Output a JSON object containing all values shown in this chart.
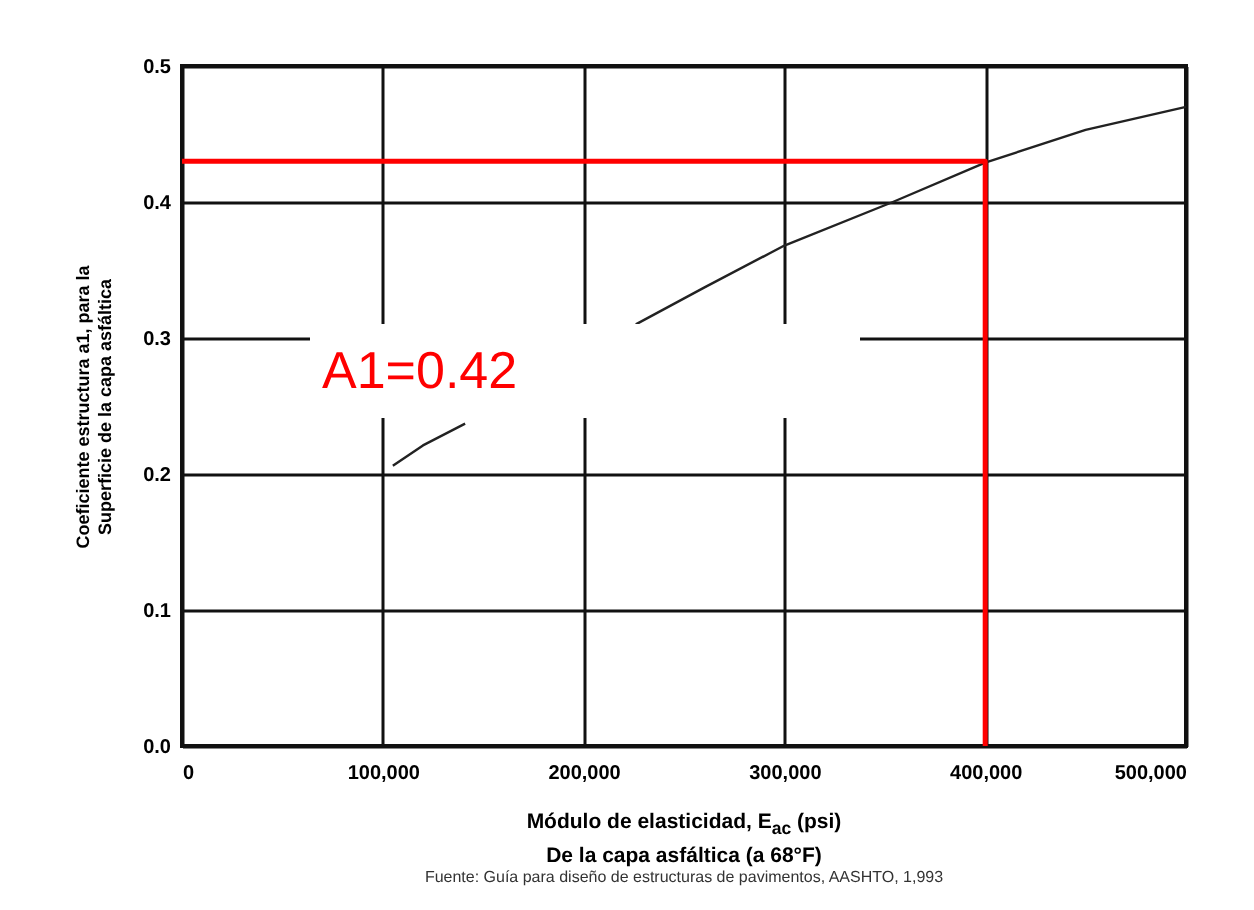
{
  "chart_data": {
    "type": "line",
    "xlabel": "Módulo de elasticidad, E$_{ac}$ (psi)\nDe la capa asfáltica (a 68°F)",
    "ylabel": "Coeficiente estructura a1, para la\nSuperficie de la capa asfáltica",
    "annotations": [
      "A1=0.42",
      "Fuente:  Guía para diseño de estructuras de pavimentos, AASHTO, 1,993"
    ],
    "xlim": [
      0,
      500000
    ],
    "ylim": [
      0,
      0.5
    ],
    "xticks": [
      {
        "value": 0,
        "label": "0"
      },
      {
        "value": 100000,
        "label": "100,000"
      },
      {
        "value": 200000,
        "label": "200,000"
      },
      {
        "value": 300000,
        "label": "300,000"
      },
      {
        "value": 400000,
        "label": "400,000"
      },
      {
        "value": 500000,
        "label": "500,000"
      }
    ],
    "yticks": [
      {
        "value": 0,
        "label": "0.0"
      },
      {
        "value": 0.1,
        "label": "0.1"
      },
      {
        "value": 0.2,
        "label": "0.2"
      },
      {
        "value": 0.3,
        "label": "0.3"
      },
      {
        "value": 0.4,
        "label": "0.4"
      },
      {
        "value": 0.5,
        "label": "0.5"
      }
    ],
    "grid": true,
    "series": [
      {
        "color": "#222222",
        "x": [
          105000,
          120000,
          141000,
          190000,
          226000,
          260000,
          300000,
          354000,
          400000,
          450000,
          500000
        ],
        "values": [
          0.206,
          0.221,
          0.237,
          null,
          0.31,
          0.337,
          0.368,
          0.4,
          0.429,
          0.453,
          0.47
        ]
      },
      {
        "color": "#ff0000",
        "line_style": "solid",
        "x": [
          0,
          400000,
          400000
        ],
        "values": [
          0.43,
          0.43,
          0
        ]
      }
    ]
  }
}
